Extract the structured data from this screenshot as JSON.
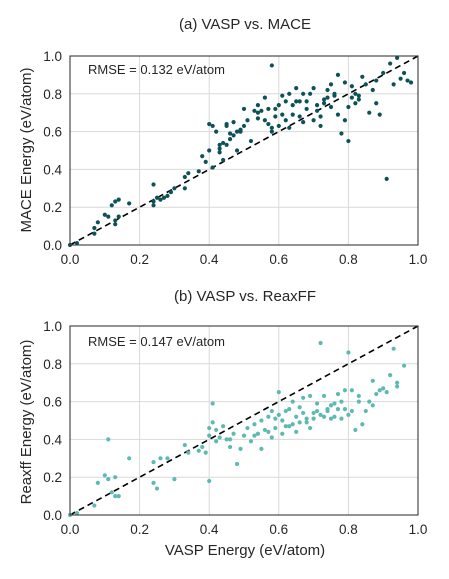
{
  "chart_data": [
    {
      "type": "scatter",
      "title": "(a) VASP vs. MACE",
      "xlabel": "",
      "ylabel": "MACE Energy (eV/atom)",
      "xlim": [
        0,
        1
      ],
      "ylim": [
        0,
        1
      ],
      "xticks": [
        "0.0",
        "0.2",
        "0.4",
        "0.6",
        "0.8",
        "1.0"
      ],
      "yticks": [
        "0.0",
        "0.2",
        "0.4",
        "0.6",
        "0.8",
        "1.0"
      ],
      "grid": true,
      "reference_line": "y = x (dashed black)",
      "annotation": "RMSE = 0.132 eV/atom",
      "color": "#0d5257",
      "points": [
        [
          0.0,
          0.0
        ],
        [
          0.02,
          0.01
        ],
        [
          0.07,
          0.06
        ],
        [
          0.07,
          0.09
        ],
        [
          0.08,
          0.12
        ],
        [
          0.1,
          0.16
        ],
        [
          0.11,
          0.15
        ],
        [
          0.12,
          0.21
        ],
        [
          0.13,
          0.23
        ],
        [
          0.13,
          0.13
        ],
        [
          0.13,
          0.11
        ],
        [
          0.14,
          0.24
        ],
        [
          0.14,
          0.15
        ],
        [
          0.17,
          0.22
        ],
        [
          0.24,
          0.32
        ],
        [
          0.24,
          0.23
        ],
        [
          0.24,
          0.21
        ],
        [
          0.25,
          0.25
        ],
        [
          0.26,
          0.24
        ],
        [
          0.27,
          0.25
        ],
        [
          0.28,
          0.26
        ],
        [
          0.29,
          0.28
        ],
        [
          0.3,
          0.3
        ],
        [
          0.33,
          0.36
        ],
        [
          0.33,
          0.3
        ],
        [
          0.34,
          0.38
        ],
        [
          0.37,
          0.39
        ],
        [
          0.38,
          0.47
        ],
        [
          0.39,
          0.44
        ],
        [
          0.4,
          0.64
        ],
        [
          0.4,
          0.5
        ],
        [
          0.41,
          0.41
        ],
        [
          0.41,
          0.63
        ],
        [
          0.42,
          0.6
        ],
        [
          0.43,
          0.51
        ],
        [
          0.43,
          0.49
        ],
        [
          0.43,
          0.53
        ],
        [
          0.44,
          0.45
        ],
        [
          0.44,
          0.54
        ],
        [
          0.45,
          0.63
        ],
        [
          0.45,
          0.64
        ],
        [
          0.45,
          0.53
        ],
        [
          0.46,
          0.56
        ],
        [
          0.46,
          0.59
        ],
        [
          0.47,
          0.58
        ],
        [
          0.47,
          0.65
        ],
        [
          0.48,
          0.5
        ],
        [
          0.48,
          0.6
        ],
        [
          0.49,
          0.61
        ],
        [
          0.49,
          0.6
        ],
        [
          0.5,
          0.63
        ],
        [
          0.5,
          0.72
        ],
        [
          0.51,
          0.66
        ],
        [
          0.52,
          0.55
        ],
        [
          0.53,
          0.71
        ],
        [
          0.54,
          0.7
        ],
        [
          0.54,
          0.74
        ],
        [
          0.54,
          0.67
        ],
        [
          0.55,
          0.71
        ],
        [
          0.56,
          0.66
        ],
        [
          0.56,
          0.78
        ],
        [
          0.57,
          0.64
        ],
        [
          0.57,
          0.72
        ],
        [
          0.58,
          0.62
        ],
        [
          0.58,
          0.6
        ],
        [
          0.58,
          0.95
        ],
        [
          0.59,
          0.68
        ],
        [
          0.59,
          0.72
        ],
        [
          0.6,
          0.74
        ],
        [
          0.6,
          0.63
        ],
        [
          0.61,
          0.69
        ],
        [
          0.61,
          0.79
        ],
        [
          0.62,
          0.66
        ],
        [
          0.62,
          0.76
        ],
        [
          0.63,
          0.8
        ],
        [
          0.63,
          0.62
        ],
        [
          0.64,
          0.74
        ],
        [
          0.64,
          0.69
        ],
        [
          0.65,
          0.76
        ],
        [
          0.65,
          0.83
        ],
        [
          0.66,
          0.76
        ],
        [
          0.66,
          0.68
        ],
        [
          0.67,
          0.8
        ],
        [
          0.67,
          0.65
        ],
        [
          0.68,
          0.72
        ],
        [
          0.68,
          0.76
        ],
        [
          0.69,
          0.8
        ],
        [
          0.7,
          0.83
        ],
        [
          0.7,
          0.66
        ],
        [
          0.71,
          0.74
        ],
        [
          0.71,
          0.71
        ],
        [
          0.72,
          0.68
        ],
        [
          0.72,
          0.63
        ],
        [
          0.73,
          0.77
        ],
        [
          0.73,
          0.75
        ],
        [
          0.74,
          0.78
        ],
        [
          0.74,
          0.82
        ],
        [
          0.75,
          0.85
        ],
        [
          0.75,
          0.73
        ],
        [
          0.76,
          0.79
        ],
        [
          0.76,
          0.8
        ],
        [
          0.77,
          0.69
        ],
        [
          0.77,
          0.9
        ],
        [
          0.78,
          0.59
        ],
        [
          0.79,
          0.86
        ],
        [
          0.79,
          0.66
        ],
        [
          0.8,
          0.73
        ],
        [
          0.8,
          0.55
        ],
        [
          0.81,
          0.84
        ],
        [
          0.81,
          0.78
        ],
        [
          0.82,
          0.8
        ],
        [
          0.82,
          0.75
        ],
        [
          0.83,
          0.77
        ],
        [
          0.83,
          0.79
        ],
        [
          0.84,
          0.89
        ],
        [
          0.85,
          0.85
        ],
        [
          0.86,
          0.7
        ],
        [
          0.87,
          0.82
        ],
        [
          0.88,
          0.75
        ],
        [
          0.88,
          0.87
        ],
        [
          0.89,
          0.69
        ],
        [
          0.9,
          0.91
        ],
        [
          0.91,
          0.35
        ],
        [
          0.92,
          0.96
        ],
        [
          0.93,
          0.85
        ],
        [
          0.94,
          0.99
        ],
        [
          0.95,
          0.88
        ],
        [
          0.96,
          0.91
        ],
        [
          0.97,
          0.87
        ],
        [
          0.98,
          0.86
        ]
      ]
    },
    {
      "type": "scatter",
      "title": "(b) VASP vs. ReaxFF",
      "xlabel": "VASP Energy (eV/atom)",
      "ylabel": "Reaxff Energy (eV/atom)",
      "xlim": [
        0,
        1
      ],
      "ylim": [
        0,
        1
      ],
      "xticks": [
        "0.0",
        "0.2",
        "0.4",
        "0.6",
        "0.8",
        "1.0"
      ],
      "yticks": [
        "0.0",
        "0.2",
        "0.4",
        "0.6",
        "0.8",
        "1.0"
      ],
      "grid": true,
      "reference_line": "y = x (dashed black)",
      "annotation": "RMSE = 0.147 eV/atom",
      "color": "#5fb9b3",
      "points": [
        [
          0.0,
          0.0
        ],
        [
          0.02,
          0.01
        ],
        [
          0.07,
          0.05
        ],
        [
          0.08,
          0.17
        ],
        [
          0.1,
          0.21
        ],
        [
          0.11,
          0.4
        ],
        [
          0.11,
          0.19
        ],
        [
          0.12,
          0.12
        ],
        [
          0.13,
          0.1
        ],
        [
          0.13,
          0.2
        ],
        [
          0.14,
          0.1
        ],
        [
          0.17,
          0.3
        ],
        [
          0.24,
          0.28
        ],
        [
          0.24,
          0.17
        ],
        [
          0.25,
          0.14
        ],
        [
          0.26,
          0.3
        ],
        [
          0.28,
          0.3
        ],
        [
          0.3,
          0.19
        ],
        [
          0.33,
          0.37
        ],
        [
          0.34,
          0.33
        ],
        [
          0.37,
          0.34
        ],
        [
          0.38,
          0.36
        ],
        [
          0.39,
          0.33
        ],
        [
          0.4,
          0.42
        ],
        [
          0.4,
          0.18
        ],
        [
          0.4,
          0.46
        ],
        [
          0.41,
          0.59
        ],
        [
          0.41,
          0.49
        ],
        [
          0.42,
          0.45
        ],
        [
          0.42,
          0.39
        ],
        [
          0.43,
          0.41
        ],
        [
          0.44,
          0.47
        ],
        [
          0.45,
          0.4
        ],
        [
          0.46,
          0.36
        ],
        [
          0.46,
          0.4
        ],
        [
          0.47,
          0.43
        ],
        [
          0.48,
          0.27
        ],
        [
          0.49,
          0.35
        ],
        [
          0.5,
          0.42
        ],
        [
          0.51,
          0.46
        ],
        [
          0.52,
          0.39
        ],
        [
          0.53,
          0.42
        ],
        [
          0.53,
          0.48
        ],
        [
          0.54,
          0.43
        ],
        [
          0.55,
          0.5
        ],
        [
          0.55,
          0.35
        ],
        [
          0.56,
          0.45
        ],
        [
          0.57,
          0.52
        ],
        [
          0.57,
          0.44
        ],
        [
          0.58,
          0.55
        ],
        [
          0.58,
          0.41
        ],
        [
          0.59,
          0.51
        ],
        [
          0.59,
          0.46
        ],
        [
          0.6,
          0.53
        ],
        [
          0.6,
          0.65
        ],
        [
          0.61,
          0.5
        ],
        [
          0.61,
          0.43
        ],
        [
          0.62,
          0.55
        ],
        [
          0.62,
          0.47
        ],
        [
          0.63,
          0.47
        ],
        [
          0.63,
          0.56
        ],
        [
          0.64,
          0.6
        ],
        [
          0.64,
          0.48
        ],
        [
          0.65,
          0.52
        ],
        [
          0.65,
          0.44
        ],
        [
          0.66,
          0.57
        ],
        [
          0.66,
          0.49
        ],
        [
          0.67,
          0.54
        ],
        [
          0.67,
          0.62
        ],
        [
          0.68,
          0.49
        ],
        [
          0.68,
          0.51
        ],
        [
          0.69,
          0.63
        ],
        [
          0.69,
          0.46
        ],
        [
          0.7,
          0.54
        ],
        [
          0.7,
          0.51
        ],
        [
          0.71,
          0.55
        ],
        [
          0.71,
          0.59
        ],
        [
          0.72,
          0.91
        ],
        [
          0.72,
          0.53
        ],
        [
          0.73,
          0.52
        ],
        [
          0.73,
          0.63
        ],
        [
          0.74,
          0.56
        ],
        [
          0.74,
          0.55
        ],
        [
          0.75,
          0.51
        ],
        [
          0.75,
          0.58
        ],
        [
          0.76,
          0.59
        ],
        [
          0.76,
          0.52
        ],
        [
          0.77,
          0.64
        ],
        [
          0.77,
          0.56
        ],
        [
          0.78,
          0.6
        ],
        [
          0.78,
          0.51
        ],
        [
          0.79,
          0.66
        ],
        [
          0.79,
          0.56
        ],
        [
          0.8,
          0.53
        ],
        [
          0.8,
          0.86
        ],
        [
          0.81,
          0.55
        ],
        [
          0.81,
          0.66
        ],
        [
          0.82,
          0.45
        ],
        [
          0.83,
          0.63
        ],
        [
          0.83,
          0.6
        ],
        [
          0.84,
          0.48
        ],
        [
          0.85,
          0.55
        ],
        [
          0.86,
          0.6
        ],
        [
          0.87,
          0.71
        ],
        [
          0.87,
          0.58
        ],
        [
          0.88,
          0.64
        ],
        [
          0.89,
          0.66
        ],
        [
          0.9,
          0.67
        ],
        [
          0.91,
          0.65
        ],
        [
          0.92,
          0.74
        ],
        [
          0.93,
          0.88
        ],
        [
          0.94,
          0.68
        ],
        [
          0.94,
          0.7
        ],
        [
          0.96,
          0.79
        ]
      ]
    }
  ]
}
